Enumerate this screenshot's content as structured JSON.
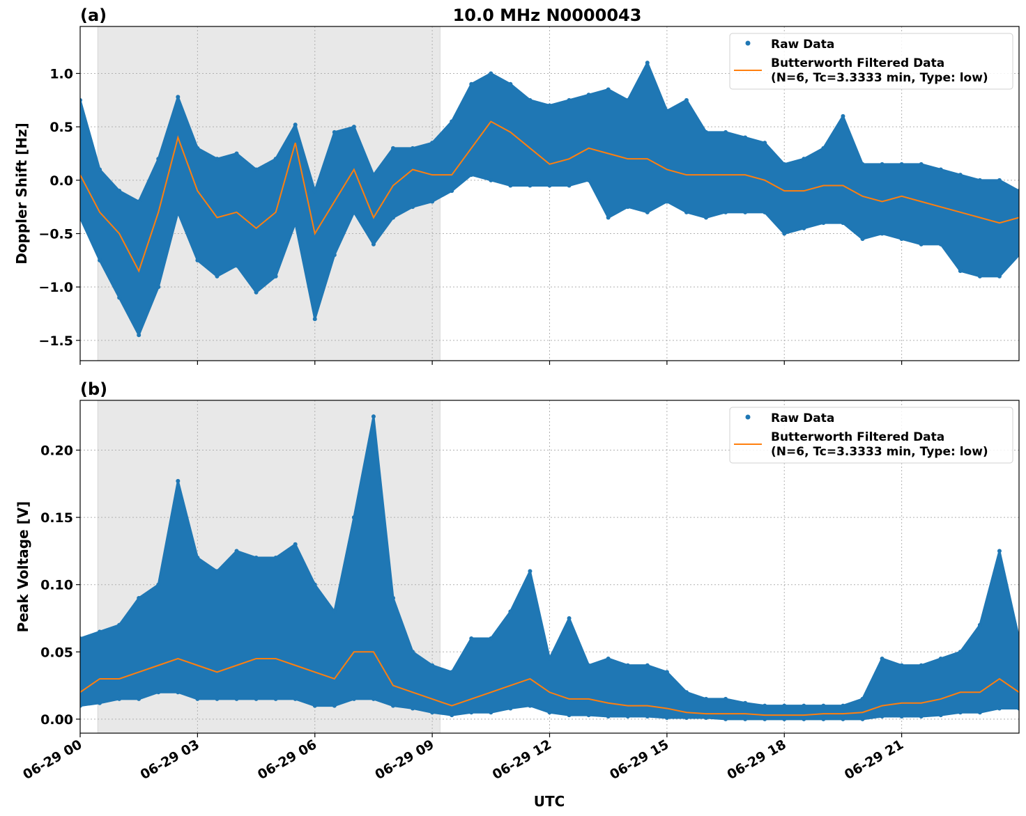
{
  "figure": {
    "title": "10.0 MHz N0000043",
    "xlabel": "UTC",
    "colors": {
      "raw": "#1f77b4",
      "filtered": "#ff7f0e",
      "shade": "#e8e8e8",
      "grid": "#b0b0b0"
    }
  },
  "chart_data": [
    {
      "panel_label": "(a)",
      "type": "scatter",
      "ylabel": "Doppler Shift [Hz]",
      "xlim_hours_utc": [
        0,
        24
      ],
      "ylim": [
        -1.69,
        1.44
      ],
      "grid": true,
      "shaded_interval_hours_utc": [
        0.45,
        9.2
      ],
      "x_ticks": [
        0,
        3,
        6,
        9,
        12,
        15,
        18,
        21
      ],
      "x_tick_labels": [
        "06-29 00",
        "06-29 03",
        "06-29 06",
        "06-29 09",
        "06-29 12",
        "06-29 15",
        "06-29 18",
        "06-29 21"
      ],
      "y_ticks": [
        -1.5,
        -1.0,
        -0.5,
        0.0,
        0.5,
        1.0
      ],
      "y_tick_labels": [
        "−1.5",
        "−1.0",
        "−0.5",
        "0.0",
        "0.5",
        "1.0"
      ],
      "legend": {
        "placement": "upper right",
        "entries": [
          "Raw Data",
          "Butterworth Filtered Data",
          "(N=6, Tc=3.3333 min, Type: low)"
        ]
      },
      "x_hours_utc_step": 0.5,
      "series": [
        {
          "name": "Raw Data",
          "kind": "scatter envelope",
          "max": [
            0.75,
            0.1,
            -0.1,
            -0.2,
            0.2,
            0.78,
            0.3,
            0.2,
            0.25,
            0.1,
            0.2,
            0.52,
            -0.1,
            0.45,
            0.5,
            0.05,
            0.3,
            0.3,
            0.35,
            0.55,
            0.9,
            1.0,
            0.9,
            0.75,
            0.7,
            0.75,
            0.8,
            0.85,
            0.75,
            1.1,
            0.65,
            0.75,
            0.45,
            0.45,
            0.4,
            0.35,
            0.15,
            0.2,
            0.3,
            0.6,
            0.15,
            0.15,
            0.15,
            0.15,
            0.1,
            0.05,
            0.0,
            0.0,
            -0.1
          ],
          "min": [
            -0.35,
            -0.75,
            -1.1,
            -1.45,
            -1.0,
            -0.3,
            -0.75,
            -0.9,
            -0.8,
            -1.05,
            -0.9,
            -0.4,
            -1.3,
            -0.7,
            -0.3,
            -0.6,
            -0.35,
            -0.25,
            -0.2,
            -0.1,
            0.05,
            0.0,
            -0.05,
            -0.05,
            -0.05,
            -0.05,
            0.0,
            -0.35,
            -0.25,
            -0.3,
            -0.2,
            -0.3,
            -0.35,
            -0.3,
            -0.3,
            -0.3,
            -0.5,
            -0.45,
            -0.4,
            -0.4,
            -0.55,
            -0.5,
            -0.55,
            -0.6,
            -0.6,
            -0.85,
            -0.9,
            -0.9,
            -0.7
          ]
        },
        {
          "name": "Butterworth Filtered Data",
          "kind": "line",
          "values": [
            0.05,
            -0.3,
            -0.5,
            -0.85,
            -0.3,
            0.4,
            -0.1,
            -0.35,
            -0.3,
            -0.45,
            -0.3,
            0.35,
            -0.5,
            -0.2,
            0.1,
            -0.35,
            -0.05,
            0.1,
            0.05,
            0.05,
            0.3,
            0.55,
            0.45,
            0.3,
            0.15,
            0.2,
            0.3,
            0.25,
            0.2,
            0.2,
            0.1,
            0.05,
            0.05,
            0.05,
            0.05,
            0.0,
            -0.1,
            -0.1,
            -0.05,
            -0.05,
            -0.15,
            -0.2,
            -0.15,
            -0.2,
            -0.25,
            -0.3,
            -0.35,
            -0.4,
            -0.35
          ]
        }
      ]
    },
    {
      "panel_label": "(b)",
      "type": "scatter",
      "ylabel": "Peak Voltage [V]",
      "xlim_hours_utc": [
        0,
        24
      ],
      "ylim": [
        -0.0104,
        0.237
      ],
      "grid": true,
      "shaded_interval_hours_utc": [
        0.45,
        9.2
      ],
      "x_ticks": [
        0,
        3,
        6,
        9,
        12,
        15,
        18,
        21
      ],
      "x_tick_labels": [
        "06-29 00",
        "06-29 03",
        "06-29 06",
        "06-29 09",
        "06-29 12",
        "06-29 15",
        "06-29 18",
        "06-29 21"
      ],
      "y_ticks": [
        0.0,
        0.05,
        0.1,
        0.15,
        0.2
      ],
      "y_tick_labels": [
        "0.00",
        "0.05",
        "0.10",
        "0.15",
        "0.20"
      ],
      "legend": {
        "placement": "upper right",
        "entries": [
          "Raw Data",
          "Butterworth Filtered Data",
          "(N=6, Tc=3.3333 min, Type: low)"
        ]
      },
      "x_hours_utc_step": 0.5,
      "series": [
        {
          "name": "Raw Data",
          "kind": "scatter envelope",
          "max": [
            0.06,
            0.065,
            0.07,
            0.09,
            0.1,
            0.177,
            0.12,
            0.11,
            0.125,
            0.12,
            0.12,
            0.13,
            0.1,
            0.08,
            0.15,
            0.225,
            0.09,
            0.05,
            0.04,
            0.035,
            0.06,
            0.06,
            0.08,
            0.11,
            0.045,
            0.075,
            0.04,
            0.045,
            0.04,
            0.04,
            0.035,
            0.02,
            0.015,
            0.015,
            0.012,
            0.01,
            0.01,
            0.01,
            0.01,
            0.01,
            0.015,
            0.045,
            0.04,
            0.04,
            0.045,
            0.05,
            0.07,
            0.125,
            0.06
          ],
          "min": [
            0.01,
            0.012,
            0.015,
            0.015,
            0.02,
            0.02,
            0.015,
            0.015,
            0.015,
            0.015,
            0.015,
            0.015,
            0.01,
            0.01,
            0.015,
            0.015,
            0.01,
            0.008,
            0.005,
            0.003,
            0.005,
            0.005,
            0.008,
            0.01,
            0.005,
            0.003,
            0.003,
            0.002,
            0.002,
            0.002,
            0.001,
            0.001,
            0.001,
            0.0,
            0.0,
            0.0,
            0.0,
            0.0,
            0.0,
            0.0,
            0.0,
            0.002,
            0.002,
            0.002,
            0.003,
            0.005,
            0.005,
            0.008,
            0.008
          ]
        },
        {
          "name": "Butterworth Filtered Data",
          "kind": "line",
          "values": [
            0.02,
            0.03,
            0.03,
            0.035,
            0.04,
            0.045,
            0.04,
            0.035,
            0.04,
            0.045,
            0.045,
            0.04,
            0.035,
            0.03,
            0.05,
            0.05,
            0.025,
            0.02,
            0.015,
            0.01,
            0.015,
            0.02,
            0.025,
            0.03,
            0.02,
            0.015,
            0.015,
            0.012,
            0.01,
            0.01,
            0.008,
            0.005,
            0.004,
            0.004,
            0.004,
            0.003,
            0.003,
            0.003,
            0.004,
            0.004,
            0.005,
            0.01,
            0.012,
            0.012,
            0.015,
            0.02,
            0.02,
            0.03,
            0.02
          ]
        }
      ]
    }
  ]
}
